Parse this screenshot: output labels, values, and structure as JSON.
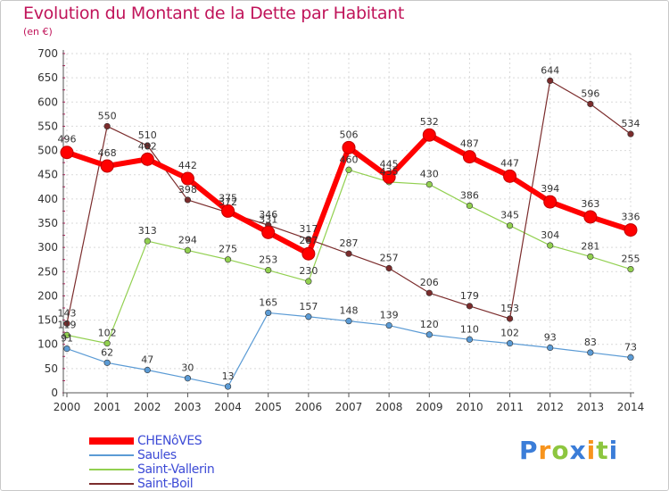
{
  "header": {
    "title": "Evolution du Montant de la Dette par Habitant",
    "subtitle": "(en €)"
  },
  "colors": {
    "title": "#c0145a",
    "axis": "#555555",
    "grid": "#d9d9d9"
  },
  "chart_data": {
    "type": "line",
    "title": "Evolution du Montant de la Dette par Habitant",
    "ylabel": "(en €)",
    "xlabel": "",
    "x": [
      "2000",
      "2001",
      "2002",
      "2003",
      "2004",
      "2005",
      "2006",
      "2007",
      "2008",
      "2009",
      "2010",
      "2011",
      "2012",
      "2013",
      "2014"
    ],
    "yticks": [
      "0",
      "50",
      "100",
      "150",
      "200",
      "250",
      "300",
      "350",
      "400",
      "450",
      "500",
      "550",
      "600",
      "650",
      "700"
    ],
    "ylim": [
      0,
      700
    ],
    "grid": true,
    "legend_position": "bottom-left",
    "series": [
      {
        "name": "CHENôVES",
        "color": "#ff0000",
        "style": "thick",
        "values": [
          496,
          468,
          482,
          442,
          375,
          331,
          287,
          506,
          445,
          532,
          487,
          447,
          394,
          363,
          336
        ],
        "labels": [
          "496",
          "468",
          "482",
          "442",
          "375",
          "331",
          "287",
          "506",
          "445",
          "532",
          "487",
          "447",
          "394",
          "363",
          "336"
        ]
      },
      {
        "name": "Saules",
        "color": "#5b9bd5",
        "style": "thin",
        "values": [
          91,
          62,
          47,
          30,
          13,
          165,
          157,
          148,
          139,
          120,
          110,
          102,
          93,
          83,
          73
        ],
        "labels": [
          "91",
          "62",
          "47",
          "30",
          "13",
          "165",
          "157",
          "148",
          "139",
          "120",
          "110",
          "102",
          "93",
          "83",
          "73"
        ]
      },
      {
        "name": "Saint-Vallerin",
        "color": "#92d050",
        "style": "thin",
        "values": [
          119,
          102,
          313,
          294,
          275,
          253,
          230,
          460,
          435,
          430,
          386,
          345,
          304,
          281,
          255
        ],
        "labels": [
          "119",
          "102",
          "313",
          "294",
          "275",
          "253",
          "230",
          "460",
          "435",
          "430",
          "386",
          "345",
          "304",
          "281",
          "255"
        ]
      },
      {
        "name": "Saint-Boil",
        "color": "#7b2c2c",
        "style": "thin",
        "values": [
          143,
          550,
          510,
          398,
          372,
          346,
          317,
          287,
          257,
          206,
          179,
          153,
          644,
          596,
          534
        ],
        "labels": [
          "143",
          "550",
          "510",
          "398",
          "372",
          "346",
          "317",
          "287",
          "257",
          "206",
          "179",
          "153",
          "644",
          "596",
          "534"
        ]
      }
    ]
  },
  "logo": {
    "text": "Proxiti",
    "letters": [
      {
        "ch": "P",
        "color": "#3b7dd8"
      },
      {
        "ch": "r",
        "color": "#f7941d"
      },
      {
        "ch": "o",
        "color": "#8dc63f"
      },
      {
        "ch": "x",
        "color": "#3b7dd8"
      },
      {
        "ch": "i",
        "color": "#f7941d"
      },
      {
        "ch": "t",
        "color": "#8dc63f"
      },
      {
        "ch": "i",
        "color": "#3b7dd8"
      }
    ]
  }
}
